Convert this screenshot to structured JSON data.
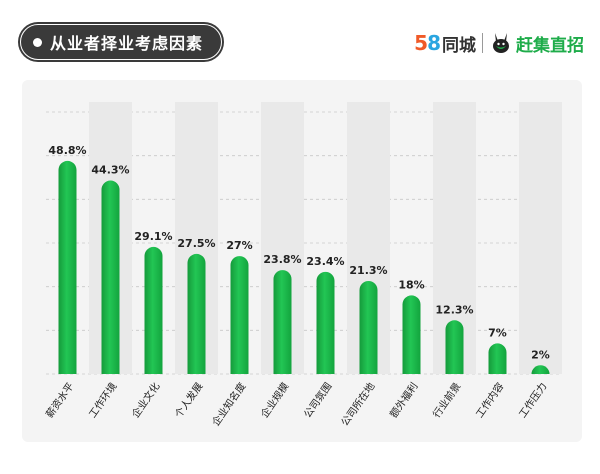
{
  "header": {
    "title": "从业者择业考虑因素"
  },
  "logos": {
    "logo_58_digits": [
      "5",
      "8"
    ],
    "logo_58_text": "同城",
    "logo_ganji_text": "赶集直招",
    "colors": {
      "five": "#f05a28",
      "eight": "#2aa5e0",
      "ganji": "#1eac4a"
    }
  },
  "chart_data": {
    "type": "bar",
    "categories": [
      "薪资水平",
      "工作环境",
      "企业文化",
      "个人发展",
      "企业知名度",
      "企业规模",
      "公司氛围",
      "公司所在地",
      "额外福利",
      "行业前景",
      "工作内容",
      "工作压力"
    ],
    "values": [
      48.8,
      44.3,
      29.1,
      27.5,
      27,
      23.8,
      23.4,
      21.3,
      18,
      12.3,
      7,
      2
    ],
    "value_labels": [
      "48.8%",
      "44.3%",
      "29.1%",
      "27.5%",
      "27%",
      "23.8%",
      "23.4%",
      "21.3%",
      "18%",
      "12.3%",
      "7%",
      "2%"
    ],
    "title": "从业者择业考虑因素",
    "xlabel": "",
    "ylabel": "",
    "ylim": [
      0,
      60
    ],
    "grid": true,
    "bar_color": "#1ebf4c",
    "bar_color_light": "#4fd873"
  }
}
